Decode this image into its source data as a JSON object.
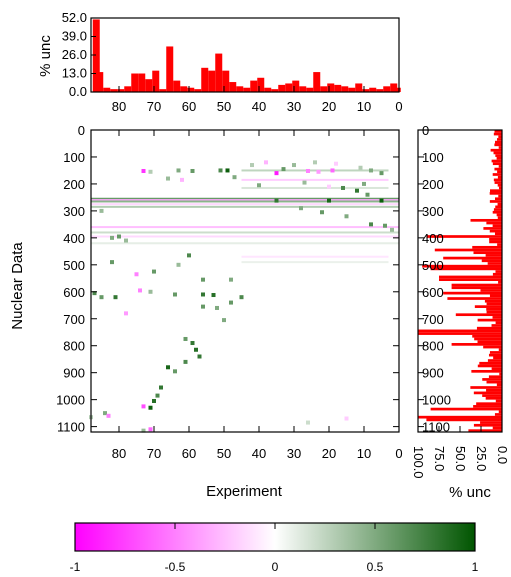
{
  "chart_data": [
    {
      "type": "bar",
      "panel": "top-histogram",
      "ylabel": "% unc",
      "y_ticks": [
        "52.0",
        "39.0",
        "26.0",
        "13.0",
        "0.0"
      ],
      "ylim": [
        0,
        52
      ],
      "x_ticks": [
        "80",
        "70",
        "60",
        "50",
        "40",
        "30",
        "20",
        "10",
        "0"
      ],
      "xlim": [
        88,
        0
      ],
      "color": "#ff0000",
      "experiment_index": [
        87,
        86,
        84,
        82,
        80,
        78,
        76,
        74,
        72,
        70,
        68,
        66,
        64,
        62,
        60,
        58,
        56,
        54,
        52,
        50,
        48,
        46,
        44,
        42,
        40,
        38,
        36,
        34,
        32,
        30,
        28,
        26,
        24,
        22,
        20,
        18,
        16,
        14,
        12,
        10,
        8,
        6,
        4,
        2,
        1
      ],
      "values": [
        51,
        14,
        3,
        2,
        2,
        4,
        13,
        13,
        9,
        15,
        2,
        32,
        8,
        4,
        3,
        2,
        17,
        15,
        27,
        15,
        7,
        4,
        3,
        8,
        10,
        3,
        2,
        5,
        6,
        8,
        4,
        3,
        14,
        4,
        6,
        5,
        4,
        3,
        6,
        2,
        3,
        2,
        4,
        6,
        3
      ]
    },
    {
      "type": "heatmap",
      "panel": "correlation-matrix",
      "xlabel": "Experiment",
      "ylabel": "Nuclear Data",
      "x_ticks": [
        "80",
        "70",
        "60",
        "50",
        "40",
        "30",
        "20",
        "10",
        "0"
      ],
      "y_ticks": [
        "0",
        "100",
        "200",
        "300",
        "400",
        "500",
        "600",
        "700",
        "800",
        "900",
        "1000",
        "1100"
      ],
      "xlim": [
        88,
        0
      ],
      "ylim": [
        1120,
        0
      ],
      "color_min": -1,
      "color_max": 1,
      "band_rows": [
        150,
        185,
        215,
        255,
        260,
        265,
        275,
        285,
        360,
        380,
        395,
        420,
        470,
        490
      ],
      "band_ranges": [
        [
          45,
          3
        ],
        [
          45,
          3
        ],
        [
          45,
          3
        ],
        [
          88,
          0
        ],
        [
          88,
          0
        ],
        [
          88,
          0
        ],
        [
          88,
          0
        ],
        [
          88,
          0
        ],
        [
          88,
          0
        ],
        [
          88,
          0
        ],
        [
          88,
          0
        ],
        [
          88,
          0
        ],
        [
          45,
          3
        ],
        [
          45,
          3
        ]
      ],
      "band_values": [
        0.25,
        -0.2,
        0.15,
        0.6,
        -0.35,
        0.45,
        -0.15,
        0.3,
        -0.25,
        0.2,
        -0.15,
        0.1,
        -0.1,
        0.08
      ],
      "points": [
        [
          73,
          152,
          -0.8
        ],
        [
          71,
          155,
          0.3
        ],
        [
          63,
          150,
          0.5
        ],
        [
          59,
          152,
          0.6
        ],
        [
          51,
          150,
          0.7
        ],
        [
          49,
          150,
          0.95
        ],
        [
          35,
          160,
          -0.9
        ],
        [
          33,
          145,
          0.6
        ],
        [
          26,
          152,
          -0.5
        ],
        [
          23,
          155,
          -0.4
        ],
        [
          19,
          150,
          -0.6
        ],
        [
          8,
          150,
          0.5
        ],
        [
          5,
          160,
          0.6
        ],
        [
          66,
          180,
          0.4
        ],
        [
          62,
          185,
          -0.3
        ],
        [
          47,
          175,
          0.5
        ],
        [
          40,
          205,
          0.5
        ],
        [
          27,
          195,
          0.4
        ],
        [
          20,
          210,
          -0.2
        ],
        [
          16,
          215,
          0.7
        ],
        [
          12,
          225,
          0.8
        ],
        [
          10,
          200,
          0.5
        ],
        [
          9,
          240,
          0.6
        ],
        [
          35,
          262,
          0.8
        ],
        [
          20,
          262,
          0.9
        ],
        [
          5,
          262,
          0.95
        ],
        [
          28,
          290,
          0.5
        ],
        [
          22,
          305,
          0.6
        ],
        [
          15,
          320,
          0.5
        ],
        [
          8,
          350,
          0.7
        ],
        [
          4,
          355,
          0.6
        ],
        [
          2,
          370,
          0.4
        ],
        [
          85,
          300,
          0.4
        ],
        [
          80,
          395,
          0.6
        ],
        [
          82,
          400,
          0.5
        ],
        [
          78,
          410,
          0.4
        ],
        [
          82,
          490,
          0.6
        ],
        [
          75,
          535,
          -0.5
        ],
        [
          70,
          525,
          0.6
        ],
        [
          60,
          465,
          0.7
        ],
        [
          63,
          500,
          0.4
        ],
        [
          56,
          555,
          0.6
        ],
        [
          48,
          555,
          0.5
        ],
        [
          87,
          605,
          0.7
        ],
        [
          85,
          620,
          0.6
        ],
        [
          81,
          620,
          0.8
        ],
        [
          74,
          595,
          -0.5
        ],
        [
          71,
          600,
          0.4
        ],
        [
          64,
          610,
          0.6
        ],
        [
          56,
          610,
          0.8
        ],
        [
          53,
          612,
          0.85
        ],
        [
          45,
          620,
          0.7
        ],
        [
          48,
          640,
          0.6
        ],
        [
          52,
          660,
          0.5
        ],
        [
          56,
          655,
          0.6
        ],
        [
          78,
          680,
          -0.4
        ],
        [
          50,
          705,
          0.5
        ],
        [
          61,
          775,
          0.6
        ],
        [
          59,
          790,
          0.8
        ],
        [
          58,
          815,
          0.85
        ],
        [
          57,
          840,
          0.8
        ],
        [
          61,
          860,
          0.7
        ],
        [
          66,
          880,
          0.9
        ],
        [
          64,
          895,
          0.6
        ],
        [
          68,
          955,
          0.8
        ],
        [
          69,
          985,
          0.7
        ],
        [
          70,
          1005,
          0.85
        ],
        [
          71,
          1030,
          0.95
        ],
        [
          73,
          1025,
          -0.7
        ],
        [
          84,
          1050,
          0.5
        ],
        [
          83,
          1060,
          -0.5
        ],
        [
          88,
          1065,
          0.3
        ],
        [
          71,
          1110,
          -0.6
        ],
        [
          73,
          1115,
          0.4
        ],
        [
          26,
          1085,
          0.2
        ],
        [
          15,
          1070,
          -0.2
        ],
        [
          42,
          130,
          0.3
        ],
        [
          38,
          120,
          -0.3
        ],
        [
          30,
          130,
          0.4
        ],
        [
          24,
          120,
          0.3
        ],
        [
          18,
          125,
          -0.2
        ],
        [
          11,
          140,
          0.3
        ]
      ]
    },
    {
      "type": "bar",
      "orientation": "horizontal",
      "panel": "right-histogram",
      "xlabel": "% unc",
      "x_ticks": [
        "100.0",
        "75.0",
        "50.0",
        "25.0",
        "0.0"
      ],
      "xlim": [
        100,
        0
      ],
      "y_ticks": [
        "0",
        "100",
        "200",
        "300",
        "400",
        "500",
        "600",
        "700",
        "800",
        "900",
        "1000",
        "1100"
      ],
      "ylim": [
        0,
        1120
      ],
      "color": "#ff0000"
    },
    {
      "type": "colorbar",
      "panel": "colorbar",
      "ticks": [
        "-1",
        "-0.5",
        "0",
        "0.5",
        "1"
      ],
      "range": [
        -1,
        1
      ],
      "color_low": "#ff00ff",
      "color_mid": "#ffffff",
      "color_high": "#005500"
    }
  ]
}
